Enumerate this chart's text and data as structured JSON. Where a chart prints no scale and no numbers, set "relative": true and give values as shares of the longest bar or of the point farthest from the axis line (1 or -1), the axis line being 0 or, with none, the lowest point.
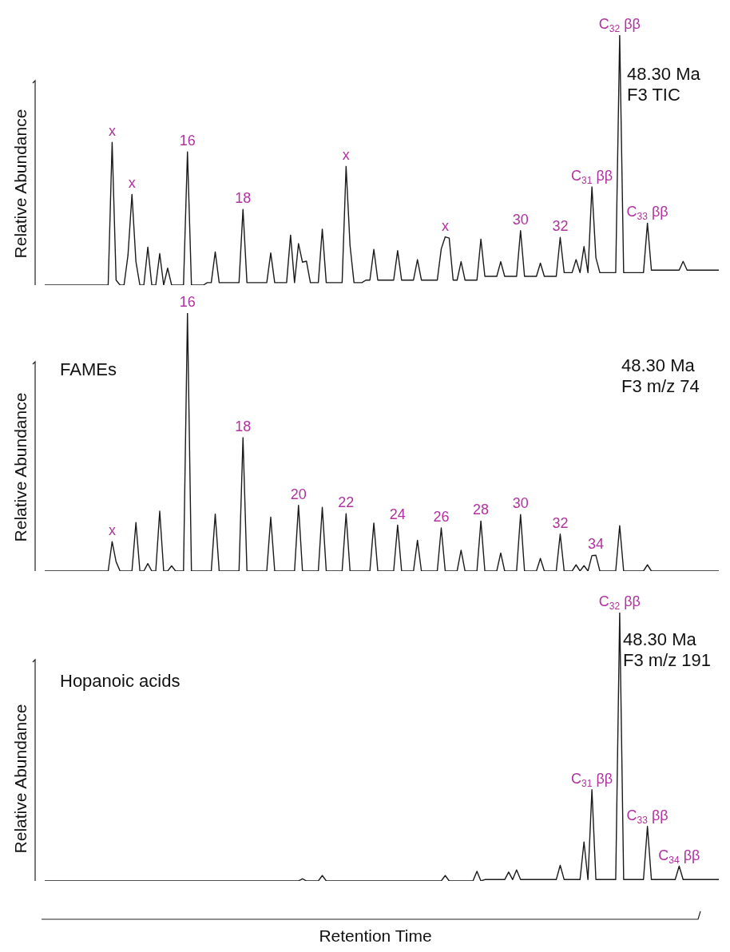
{
  "chart_data": [
    {
      "type": "line",
      "title": "48.30 Ma",
      "subtitle": "F3 TIC",
      "ylabel": "Relative Abundance",
      "relative": true,
      "color": "#1a1a1a",
      "categories": [
        null,
        null,
        null,
        null,
        null,
        null,
        null,
        null,
        null,
        null,
        null,
        null,
        null,
        null,
        null,
        null,
        null,
        null,
        null,
        null,
        null,
        null,
        null,
        null,
        null,
        null,
        null,
        null,
        null,
        null,
        null,
        null,
        null,
        null,
        null,
        null,
        null,
        null,
        null,
        null,
        null,
        null,
        null,
        null,
        null,
        null,
        null,
        null,
        null,
        null,
        null,
        null,
        null,
        null,
        null,
        null,
        null,
        null,
        null,
        null,
        null,
        null,
        null,
        null,
        null,
        null,
        null,
        null,
        null,
        null,
        null,
        null,
        null,
        null,
        null,
        null,
        null,
        null,
        null,
        null,
        null,
        null,
        null,
        null,
        null,
        null,
        null,
        null,
        null,
        null,
        null,
        null,
        null,
        null,
        null,
        null,
        null,
        null,
        null,
        null,
        null,
        null,
        null,
        null,
        null,
        null,
        null,
        null,
        null,
        null,
        null,
        null,
        null,
        null,
        null,
        null,
        null,
        null,
        null,
        null,
        null,
        null,
        null,
        null,
        null,
        null,
        null,
        null,
        null,
        null,
        null,
        null,
        null,
        null,
        null,
        null,
        null,
        null,
        null,
        null,
        null,
        null,
        null,
        null,
        null,
        null,
        null,
        null,
        null,
        null,
        null,
        null,
        null,
        null,
        null,
        null,
        null,
        null,
        null,
        null,
        null,
        null,
        null,
        null,
        null,
        null,
        null,
        null,
        null,
        null,
        null
      ],
      "values": [
        0,
        0,
        0,
        0,
        0,
        0,
        0,
        0,
        0,
        0,
        0,
        0,
        0,
        0,
        0,
        0,
        0,
        0.571,
        0.02,
        0,
        0,
        0.12,
        0.363,
        0.094,
        0,
        0,
        0.152,
        0,
        0,
        0.126,
        0,
        0.068,
        0,
        0,
        0,
        0,
        0.533,
        0,
        0,
        0,
        0,
        0.01,
        0.01,
        0.133,
        0.01,
        0.01,
        0.01,
        0.01,
        0.01,
        0.01,
        0.303,
        0.01,
        0.01,
        0.01,
        0.01,
        0.01,
        0.01,
        0.129,
        0.01,
        0.01,
        0.01,
        0.01,
        0.2,
        0.01,
        0.166,
        0.092,
        0.096,
        0.01,
        0.01,
        0.01,
        0.224,
        0.01,
        0.01,
        0.01,
        0.01,
        0.01,
        0.475,
        0.158,
        0.01,
        0.01,
        0.01,
        0.02,
        0.02,
        0.143,
        0.02,
        0.02,
        0.02,
        0.02,
        0.02,
        0.138,
        0.02,
        0.02,
        0.02,
        0.02,
        0.102,
        0.02,
        0.02,
        0.02,
        0.02,
        0.02,
        0.145,
        0.193,
        0.188,
        0.02,
        0.02,
        0.094,
        0.02,
        0.02,
        0.02,
        0.02,
        0.184,
        0.035,
        0.035,
        0.035,
        0.035,
        0.094,
        0.035,
        0.035,
        0.035,
        0.035,
        0.218,
        0.035,
        0.035,
        0.035,
        0.035,
        0.088,
        0.035,
        0.035,
        0.035,
        0.035,
        0.191,
        0.05,
        0.05,
        0.05,
        0.102,
        0.05,
        0.154,
        0.05,
        0.393,
        0.11,
        0.05,
        0.05,
        0.05,
        0.05,
        0.05,
        1,
        0.05,
        0.05,
        0.05,
        0.05,
        0.05,
        0.05,
        0.248,
        0.06,
        0.06,
        0.06,
        0.06,
        0.06,
        0.06,
        0.06,
        0.06,
        0.095,
        0.06,
        0.06,
        0.06,
        0.06,
        0.06,
        0.06,
        0.06,
        0.06,
        0.06
      ],
      "annotations": [
        {
          "text": "x",
          "y": 0.571
        },
        {
          "text": "x",
          "y": 0.363
        },
        {
          "text": "16",
          "y": 0.533
        },
        {
          "text": "18",
          "y": 0.303
        },
        {
          "text": "x",
          "y": 0.475
        },
        {
          "text": "x",
          "y": 0.193
        },
        {
          "text": "30",
          "y": 0.218
        },
        {
          "text": "32",
          "y": 0.191
        },
        {
          "text": "C$_{31}$ ββ",
          "y": 0.393
        },
        {
          "text": "C$_{32}$ ββ",
          "y": 1
        },
        {
          "text": "C$_{33}$ ββ",
          "y": 0.248
        }
      ]
    },
    {
      "type": "line",
      "title": "48.30 Ma",
      "subtitle": "F3 m/z 74",
      "ylabel": "Relative Abundance",
      "relative": true,
      "color": "#1a1a1a",
      "categories": [
        null,
        null,
        null,
        null,
        null,
        null,
        null,
        null,
        null,
        null,
        null,
        null,
        null,
        null,
        null,
        null,
        null,
        null,
        null,
        null,
        null,
        null,
        null,
        null,
        null,
        null,
        null,
        null,
        null,
        null,
        null,
        null,
        null,
        null,
        null,
        null,
        null,
        null,
        null,
        null,
        null,
        null,
        null,
        null,
        null,
        null,
        null,
        null,
        null,
        null,
        null,
        null,
        null,
        null,
        null,
        null,
        null,
        null,
        null,
        null,
        null,
        null,
        null,
        null,
        null,
        null,
        null,
        null,
        null,
        null,
        null,
        null,
        null,
        null,
        null,
        null,
        null,
        null,
        null,
        null,
        null,
        null,
        null,
        null,
        null,
        null,
        null,
        null,
        null,
        null,
        null,
        null,
        null,
        null,
        null,
        null,
        null,
        null,
        null,
        null,
        null,
        null,
        null,
        null,
        null,
        null,
        null,
        null,
        null,
        null,
        null,
        null,
        null,
        null,
        null,
        null,
        null,
        null,
        null,
        null,
        null,
        null,
        null,
        null,
        null,
        null,
        null,
        null,
        null,
        null,
        null,
        null,
        null,
        null,
        null,
        null,
        null,
        null,
        null,
        null,
        null,
        null,
        null,
        null,
        null,
        null,
        null,
        null,
        null,
        null,
        null,
        null,
        null,
        null,
        null,
        null,
        null,
        null,
        null,
        null,
        null,
        null,
        null,
        null,
        null,
        null,
        null,
        null,
        null,
        null,
        null
      ],
      "values": [
        0,
        0,
        0,
        0,
        0,
        0,
        0,
        0,
        0,
        0,
        0,
        0,
        0,
        0,
        0,
        0,
        0,
        0.114,
        0.036,
        0,
        0,
        0,
        0,
        0.188,
        0,
        0,
        0.029,
        0,
        0,
        0.232,
        0,
        0,
        0.02,
        0,
        0,
        0,
        1,
        0,
        0,
        0,
        0,
        0,
        0,
        0.221,
        0,
        0,
        0,
        0,
        0,
        0,
        0.517,
        0,
        0,
        0,
        0,
        0,
        0,
        0.209,
        0,
        0,
        0,
        0,
        0,
        0,
        0.255,
        0,
        0,
        0,
        0,
        0,
        0.247,
        0,
        0,
        0,
        0,
        0,
        0.222,
        0,
        0,
        0,
        0,
        0,
        0,
        0.186,
        0,
        0,
        0,
        0,
        0,
        0.178,
        0,
        0,
        0,
        0,
        0.119,
        0,
        0,
        0,
        0,
        0,
        0.167,
        0,
        0,
        0,
        0,
        0.081,
        0,
        0,
        0,
        0,
        0.194,
        0,
        0,
        0,
        0,
        0.07,
        0,
        0,
        0,
        0,
        0.219,
        0,
        0,
        0,
        0,
        0.049,
        0,
        0,
        0,
        0,
        0.143,
        0,
        0,
        0,
        0.024,
        0,
        0.021,
        0,
        0.06,
        0.061,
        0,
        0,
        0,
        0,
        0,
        0.176,
        0,
        0,
        0,
        0,
        0,
        0,
        0.024,
        0,
        0,
        0,
        0,
        0,
        0,
        0,
        0,
        0,
        0,
        0,
        0,
        0,
        0,
        0,
        0,
        0,
        0
      ],
      "annotations": [
        "FAMEs",
        {
          "text": "x",
          "y": 0.114
        },
        {
          "text": "16",
          "y": 1
        },
        {
          "text": "18",
          "y": 0.517
        },
        {
          "text": "20",
          "y": 0.255
        },
        {
          "text": "22",
          "y": 0.222
        },
        {
          "text": "24",
          "y": 0.178
        },
        {
          "text": "26",
          "y": 0.167
        },
        {
          "text": "28",
          "y": 0.194
        },
        {
          "text": "30",
          "y": 0.219
        },
        {
          "text": "32",
          "y": 0.143
        },
        {
          "text": "34",
          "y": 0.061
        }
      ]
    },
    {
      "type": "line",
      "title": "48.30 Ma",
      "subtitle": "F3 m/z 191",
      "ylabel": "Relative Abundance",
      "xlabel": "Retention Time",
      "relative": true,
      "color": "#1a1a1a",
      "categories": [
        null,
        null,
        null,
        null,
        null,
        null,
        null,
        null,
        null,
        null,
        null,
        null,
        null,
        null,
        null,
        null,
        null,
        null,
        null,
        null,
        null,
        null,
        null,
        null,
        null,
        null,
        null,
        null,
        null,
        null,
        null,
        null,
        null,
        null,
        null,
        null,
        null,
        null,
        null,
        null,
        null,
        null,
        null,
        null,
        null,
        null,
        null,
        null,
        null,
        null,
        null,
        null,
        null,
        null,
        null,
        null,
        null,
        null,
        null,
        null,
        null,
        null,
        null,
        null,
        null,
        null,
        null,
        null,
        null,
        null,
        null,
        null,
        null,
        null,
        null,
        null,
        null,
        null,
        null,
        null,
        null,
        null,
        null,
        null,
        null,
        null,
        null,
        null,
        null,
        null,
        null,
        null,
        null,
        null,
        null,
        null,
        null,
        null,
        null,
        null,
        null,
        null,
        null,
        null,
        null,
        null,
        null,
        null,
        null,
        null,
        null,
        null,
        null,
        null,
        null,
        null,
        null,
        null,
        null,
        null,
        null,
        null,
        null,
        null,
        null,
        null,
        null,
        null,
        null,
        null,
        null,
        null,
        null,
        null,
        null,
        null,
        null,
        null,
        null,
        null,
        null,
        null,
        null,
        null,
        null,
        null,
        null,
        null,
        null,
        null,
        null,
        null,
        null,
        null,
        null,
        null,
        null,
        null,
        null,
        null,
        null,
        null,
        null,
        null,
        null,
        null,
        null,
        null,
        null,
        null,
        null
      ],
      "values": [
        0,
        0,
        0,
        0,
        0,
        0,
        0,
        0,
        0,
        0,
        0,
        0,
        0,
        0,
        0,
        0,
        0,
        0,
        0,
        0,
        0,
        0,
        0,
        0,
        0,
        0,
        0,
        0,
        0,
        0,
        0,
        0,
        0,
        0,
        0,
        0,
        0,
        0,
        0,
        0,
        0,
        0,
        0,
        0,
        0,
        0,
        0,
        0,
        0,
        0,
        0,
        0,
        0,
        0,
        0,
        0,
        0,
        0,
        0,
        0,
        0,
        0,
        0,
        0,
        0,
        0.008,
        0,
        0,
        0,
        0,
        0.02,
        0,
        0,
        0,
        0,
        0,
        0,
        0,
        0,
        0,
        0,
        0,
        0,
        0,
        0,
        0,
        0,
        0,
        0,
        0,
        0,
        0,
        0,
        0,
        0,
        0,
        0,
        0,
        0,
        0,
        0,
        0.02,
        0,
        0,
        0,
        0,
        0,
        0,
        0,
        0.036,
        0,
        0.005,
        0.005,
        0.005,
        0.005,
        0.005,
        0.005,
        0.033,
        0.005,
        0.041,
        0.005,
        0.005,
        0.005,
        0.005,
        0.005,
        0.005,
        0.005,
        0.005,
        0.005,
        0.005,
        0.058,
        0.005,
        0.005,
        0.005,
        0.005,
        0.005,
        0.145,
        0.005,
        0.34,
        0.005,
        0.005,
        0.005,
        0.005,
        0.005,
        0.005,
        1,
        0.005,
        0.005,
        0.005,
        0.005,
        0.005,
        0.005,
        0.203,
        0.005,
        0.005,
        0.005,
        0.005,
        0.005,
        0.005,
        0.005,
        0.055,
        0.005,
        0.005,
        0.005,
        0.005,
        0.005,
        0.005,
        0.005,
        0.005,
        0.005,
        0.005
      ],
      "annotations": [
        "Hopanoic acids",
        {
          "text": "C$_{31}$ ββ",
          "y": 0.34
        },
        {
          "text": "C$_{32}$ ββ",
          "y": 1
        },
        {
          "text": "C$_{33}$ ββ",
          "y": 0.203
        },
        {
          "text": "C$_{34}$ ββ",
          "y": 0.055
        }
      ]
    }
  ]
}
